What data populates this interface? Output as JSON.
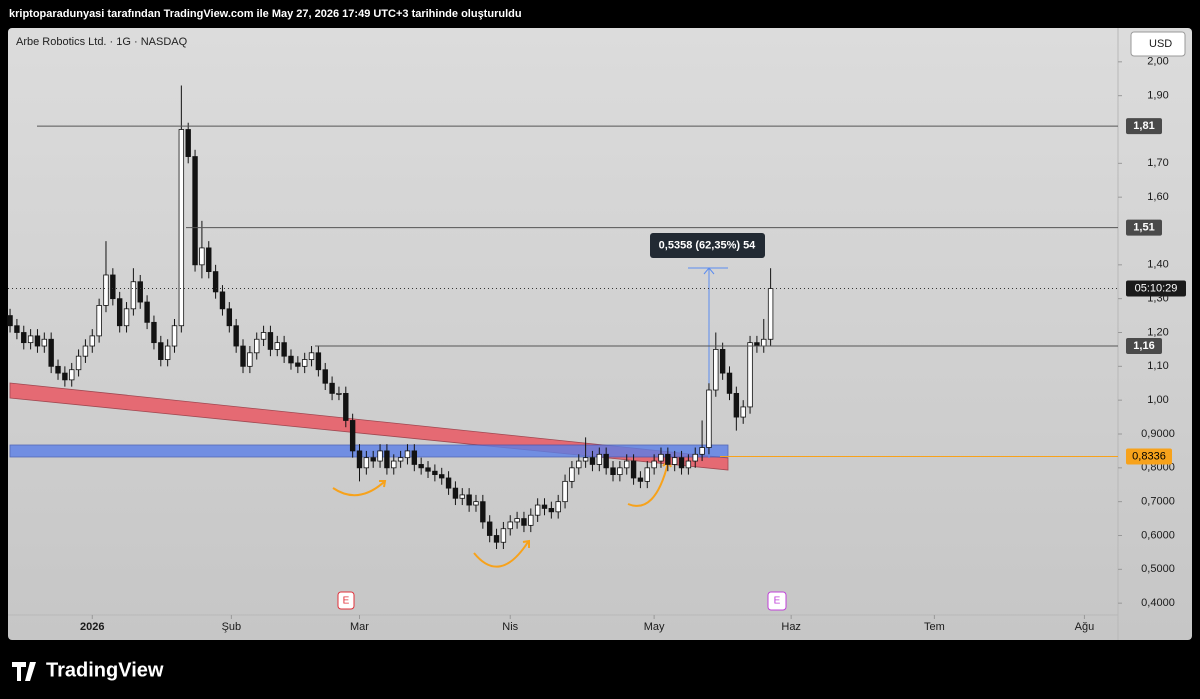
{
  "header": "kriptoparadunyasi tarafından TradingView.com ile May 27, 2026 17:49 UTC+3 tarihinde oluşturuldu",
  "brand": "TradingView",
  "chart_data": {
    "type": "candlestick",
    "title": "Arbe Robotics Ltd. · 1G · NASDAQ",
    "currency": "USD",
    "up_color": "#ffffff",
    "down_color": "#131313",
    "xlim": [
      -0.3,
      161.7
    ],
    "xticks": [
      {
        "value": 12,
        "label": "2026"
      },
      {
        "value": 32.3,
        "label": "Şub"
      },
      {
        "value": 51,
        "label": "Mar"
      },
      {
        "value": 73,
        "label": "Nis"
      },
      {
        "value": 94,
        "label": "May"
      },
      {
        "value": 114,
        "label": "Haz"
      },
      {
        "value": 134.9,
        "label": "Tem"
      },
      {
        "value": 156.8,
        "label": "Ağu"
      }
    ],
    "ylim": [
      0.365,
      2.1
    ],
    "yticks": [
      {
        "value": 2.0,
        "label": "2,00"
      },
      {
        "value": 1.9,
        "label": "1,90"
      },
      {
        "value": 1.7,
        "label": "1,70"
      },
      {
        "value": 1.6,
        "label": "1,60"
      },
      {
        "value": 1.4,
        "label": "1,40"
      },
      {
        "value": 1.3,
        "label": "1,30"
      },
      {
        "value": 1.2,
        "label": "1,20"
      },
      {
        "value": 1.1,
        "label": "1,10"
      },
      {
        "value": 1.0,
        "label": "1,00"
      },
      {
        "value": 0.9,
        "label": "0,9000"
      },
      {
        "value": 0.8,
        "label": "0,8000"
      },
      {
        "value": 0.7,
        "label": "0,7000"
      },
      {
        "value": 0.6,
        "label": "0,6000"
      },
      {
        "value": 0.5,
        "label": "0,5000"
      },
      {
        "value": 0.4,
        "label": "0,4000"
      }
    ],
    "open": [
      1.25,
      1.22,
      1.2,
      1.17,
      1.19,
      1.16,
      1.18,
      1.1,
      1.08,
      1.06,
      1.09,
      1.13,
      1.16,
      1.19,
      1.28,
      1.37,
      1.3,
      1.22,
      1.27,
      1.35,
      1.29,
      1.23,
      1.17,
      1.12,
      1.16,
      1.22,
      1.8,
      1.72,
      1.4,
      1.45,
      1.38,
      1.32,
      1.27,
      1.22,
      1.16,
      1.1,
      1.14,
      1.18,
      1.2,
      1.15,
      1.17,
      1.13,
      1.11,
      1.1,
      1.12,
      1.14,
      1.09,
      1.05,
      1.02,
      1.02,
      0.94,
      0.85,
      0.8,
      0.83,
      0.82,
      0.85,
      0.8,
      0.82,
      0.83,
      0.85,
      0.81,
      0.8,
      0.79,
      0.78,
      0.77,
      0.74,
      0.71,
      0.72,
      0.69,
      0.7,
      0.64,
      0.6,
      0.58,
      0.62,
      0.64,
      0.65,
      0.63,
      0.66,
      0.69,
      0.68,
      0.67,
      0.7,
      0.76,
      0.8,
      0.82,
      0.83,
      0.81,
      0.84,
      0.8,
      0.78,
      0.8,
      0.82,
      0.77,
      0.76,
      0.8,
      0.82,
      0.84,
      0.81,
      0.83,
      0.8,
      0.82,
      0.84,
      0.86,
      1.03,
      1.15,
      1.08,
      1.02,
      0.95,
      0.98,
      1.17,
      1.16,
      1.18
    ],
    "high": [
      1.27,
      1.24,
      1.22,
      1.21,
      1.21,
      1.2,
      1.2,
      1.12,
      1.1,
      1.11,
      1.15,
      1.18,
      1.21,
      1.3,
      1.47,
      1.39,
      1.32,
      1.29,
      1.39,
      1.37,
      1.31,
      1.25,
      1.19,
      1.18,
      1.24,
      1.93,
      1.82,
      1.74,
      1.53,
      1.47,
      1.4,
      1.34,
      1.29,
      1.24,
      1.18,
      1.16,
      1.2,
      1.22,
      1.22,
      1.19,
      1.19,
      1.15,
      1.13,
      1.14,
      1.16,
      1.16,
      1.11,
      1.07,
      1.04,
      1.04,
      0.96,
      0.87,
      0.85,
      0.85,
      0.87,
      0.87,
      0.84,
      0.85,
      0.87,
      0.87,
      0.83,
      0.82,
      0.81,
      0.8,
      0.79,
      0.76,
      0.74,
      0.74,
      0.72,
      0.72,
      0.66,
      0.62,
      0.64,
      0.66,
      0.67,
      0.67,
      0.68,
      0.71,
      0.71,
      0.7,
      0.72,
      0.78,
      0.82,
      0.84,
      0.89,
      0.85,
      0.86,
      0.86,
      0.82,
      0.82,
      0.84,
      0.84,
      0.79,
      0.82,
      0.84,
      0.86,
      0.86,
      0.85,
      0.85,
      0.84,
      0.86,
      0.94,
      1.05,
      1.2,
      1.17,
      1.1,
      1.04,
      1.0,
      1.19,
      1.19,
      1.24,
      1.39
    ],
    "low": [
      1.2,
      1.18,
      1.15,
      1.15,
      1.14,
      1.14,
      1.08,
      1.06,
      1.04,
      1.04,
      1.07,
      1.11,
      1.14,
      1.17,
      1.26,
      1.28,
      1.2,
      1.2,
      1.25,
      1.27,
      1.21,
      1.15,
      1.1,
      1.1,
      1.14,
      1.2,
      1.7,
      1.38,
      1.36,
      1.36,
      1.3,
      1.25,
      1.2,
      1.14,
      1.08,
      1.08,
      1.12,
      1.16,
      1.13,
      1.13,
      1.11,
      1.09,
      1.08,
      1.08,
      1.1,
      1.07,
      1.03,
      1.0,
      1.0,
      0.92,
      0.83,
      0.76,
      0.78,
      0.8,
      0.8,
      0.78,
      0.78,
      0.8,
      0.81,
      0.79,
      0.78,
      0.77,
      0.76,
      0.75,
      0.72,
      0.69,
      0.69,
      0.67,
      0.67,
      0.62,
      0.58,
      0.56,
      0.56,
      0.6,
      0.62,
      0.61,
      0.61,
      0.64,
      0.66,
      0.65,
      0.65,
      0.68,
      0.74,
      0.78,
      0.8,
      0.79,
      0.79,
      0.78,
      0.76,
      0.76,
      0.78,
      0.75,
      0.74,
      0.74,
      0.78,
      0.8,
      0.79,
      0.79,
      0.78,
      0.78,
      0.8,
      0.82,
      0.84,
      1.01,
      1.06,
      1.0,
      0.91,
      0.93,
      0.96,
      1.14,
      1.14,
      1.16
    ],
    "close": [
      1.22,
      1.2,
      1.17,
      1.19,
      1.16,
      1.18,
      1.1,
      1.08,
      1.06,
      1.09,
      1.13,
      1.16,
      1.19,
      1.28,
      1.37,
      1.3,
      1.22,
      1.27,
      1.35,
      1.29,
      1.23,
      1.17,
      1.12,
      1.16,
      1.22,
      1.8,
      1.72,
      1.4,
      1.45,
      1.38,
      1.32,
      1.27,
      1.22,
      1.16,
      1.1,
      1.14,
      1.18,
      1.2,
      1.15,
      1.17,
      1.13,
      1.11,
      1.1,
      1.12,
      1.14,
      1.09,
      1.05,
      1.02,
      1.02,
      0.94,
      0.85,
      0.8,
      0.83,
      0.82,
      0.85,
      0.8,
      0.82,
      0.83,
      0.85,
      0.81,
      0.8,
      0.79,
      0.78,
      0.77,
      0.74,
      0.71,
      0.72,
      0.69,
      0.7,
      0.64,
      0.6,
      0.58,
      0.62,
      0.64,
      0.65,
      0.63,
      0.66,
      0.69,
      0.68,
      0.67,
      0.7,
      0.76,
      0.8,
      0.82,
      0.83,
      0.81,
      0.84,
      0.8,
      0.78,
      0.8,
      0.82,
      0.77,
      0.76,
      0.8,
      0.82,
      0.84,
      0.81,
      0.83,
      0.8,
      0.82,
      0.84,
      0.86,
      1.03,
      1.15,
      1.08,
      1.02,
      0.95,
      0.98,
      1.17,
      1.16,
      1.18,
      1.33
    ],
    "levels": [
      {
        "value": 1.81,
        "label": "1,81"
      },
      {
        "value": 1.51,
        "label": "1,51"
      },
      {
        "value": 1.16,
        "label": "1,16"
      }
    ],
    "support": {
      "value": 0.8336,
      "label": "0,8336",
      "color": "#f7a21b"
    },
    "countdown": "05:10:29",
    "measure": "0,5358 (62,35%) 54",
    "events": [
      "E",
      "E"
    ]
  }
}
